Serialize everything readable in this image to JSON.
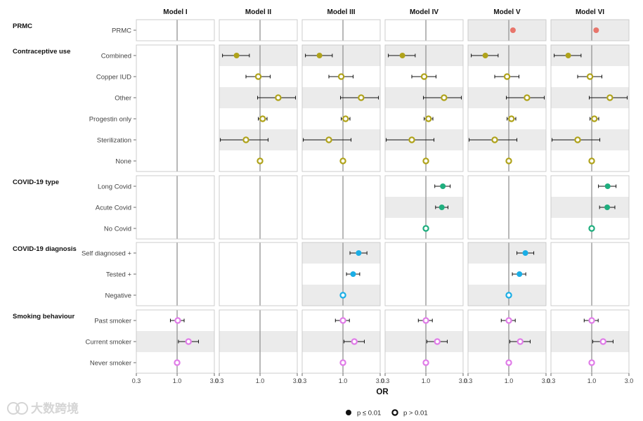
{
  "chart_data": {
    "type": "forest",
    "title": "",
    "xlabel": "OR",
    "xscale": "log",
    "xlim": [
      0.3,
      3.0
    ],
    "xticks": [
      0.3,
      1.0,
      3.0
    ],
    "xtick_labels": [
      "0.3",
      "1.0",
      "3.0"
    ],
    "reference_line": 1.0,
    "models": [
      "Model I",
      "Model II",
      "Model III",
      "Model IV",
      "Model V",
      "Model VI"
    ],
    "colors": {
      "PRMC": "#e8756b",
      "Contraceptive use": "#b0a31b",
      "COVID-19 type": "#1fae7e",
      "COVID-19 diagnosis": "#1aaee6",
      "Smoking behaviour": "#e07ce8"
    },
    "legend": {
      "items": [
        {
          "label": "p ≤ 0.01",
          "style": "filled"
        },
        {
          "label": "p > 0.01",
          "style": "hollow"
        }
      ]
    },
    "groups": [
      {
        "name": "PRMC",
        "rows": [
          "PRMC"
        ],
        "panels": [
          {
            "shaded": [],
            "points": []
          },
          {
            "shaded": [],
            "points": []
          },
          {
            "shaded": [],
            "points": []
          },
          {
            "shaded": [],
            "points": []
          },
          {
            "shaded": [
              "PRMC"
            ],
            "points": [
              {
                "row": "PRMC",
                "or": 1.13,
                "lo": 1.08,
                "hi": 1.19,
                "sig": true
              }
            ]
          },
          {
            "shaded": [
              "PRMC"
            ],
            "points": [
              {
                "row": "PRMC",
                "or": 1.14,
                "lo": 1.08,
                "hi": 1.2,
                "sig": true
              }
            ]
          }
        ]
      },
      {
        "name": "Contraceptive use",
        "rows": [
          "Combined",
          "Copper IUD",
          "Other",
          "Progestin only",
          "Sterilization",
          "None"
        ],
        "panels": [
          {
            "shaded": [],
            "points": []
          },
          {
            "shaded": [
              "Combined",
              "Other",
              "Sterilization"
            ],
            "points": [
              {
                "row": "Combined",
                "or": 0.5,
                "lo": 0.33,
                "hi": 0.73,
                "sig": true
              },
              {
                "row": "Copper IUD",
                "or": 0.95,
                "lo": 0.66,
                "hi": 1.35,
                "sig": false
              },
              {
                "row": "Other",
                "or": 1.71,
                "lo": 0.93,
                "hi": 2.85,
                "sig": false
              },
              {
                "row": "Progestin only",
                "or": 1.08,
                "lo": 0.95,
                "hi": 1.23,
                "sig": false
              },
              {
                "row": "Sterilization",
                "or": 0.66,
                "lo": 0.31,
                "hi": 1.27,
                "sig": false
              },
              {
                "row": "None",
                "or": 1.0,
                "sig": false
              }
            ]
          },
          {
            "shaded": [
              "Combined",
              "Other",
              "Sterilization"
            ],
            "points": [
              {
                "row": "Combined",
                "or": 0.5,
                "lo": 0.33,
                "hi": 0.73,
                "sig": true
              },
              {
                "row": "Copper IUD",
                "or": 0.95,
                "lo": 0.66,
                "hi": 1.35,
                "sig": false
              },
              {
                "row": "Other",
                "or": 1.71,
                "lo": 0.93,
                "hi": 2.85,
                "sig": false
              },
              {
                "row": "Progestin only",
                "or": 1.08,
                "lo": 0.95,
                "hi": 1.23,
                "sig": false
              },
              {
                "row": "Sterilization",
                "or": 0.66,
                "lo": 0.31,
                "hi": 1.27,
                "sig": false
              },
              {
                "row": "None",
                "or": 1.0,
                "sig": false
              }
            ]
          },
          {
            "shaded": [
              "Combined",
              "Other",
              "Sterilization"
            ],
            "points": [
              {
                "row": "Combined",
                "or": 0.5,
                "lo": 0.33,
                "hi": 0.73,
                "sig": true
              },
              {
                "row": "Copper IUD",
                "or": 0.95,
                "lo": 0.66,
                "hi": 1.35,
                "sig": false
              },
              {
                "row": "Other",
                "or": 1.71,
                "lo": 0.93,
                "hi": 2.85,
                "sig": false
              },
              {
                "row": "Progestin only",
                "or": 1.08,
                "lo": 0.95,
                "hi": 1.23,
                "sig": false
              },
              {
                "row": "Sterilization",
                "or": 0.66,
                "lo": 0.31,
                "hi": 1.27,
                "sig": false
              },
              {
                "row": "None",
                "or": 1.0,
                "sig": false
              }
            ]
          },
          {
            "shaded": [
              "Combined",
              "Other",
              "Sterilization"
            ],
            "points": [
              {
                "row": "Combined",
                "or": 0.5,
                "lo": 0.33,
                "hi": 0.73,
                "sig": true
              },
              {
                "row": "Copper IUD",
                "or": 0.95,
                "lo": 0.66,
                "hi": 1.35,
                "sig": false
              },
              {
                "row": "Other",
                "or": 1.71,
                "lo": 0.93,
                "hi": 2.85,
                "sig": false
              },
              {
                "row": "Progestin only",
                "or": 1.08,
                "lo": 0.95,
                "hi": 1.23,
                "sig": false
              },
              {
                "row": "Sterilization",
                "or": 0.66,
                "lo": 0.31,
                "hi": 1.27,
                "sig": false
              },
              {
                "row": "None",
                "or": 1.0,
                "sig": false
              }
            ]
          },
          {
            "shaded": [
              "Combined",
              "Other",
              "Sterilization"
            ],
            "points": [
              {
                "row": "Combined",
                "or": 0.5,
                "lo": 0.33,
                "hi": 0.73,
                "sig": true
              },
              {
                "row": "Copper IUD",
                "or": 0.95,
                "lo": 0.66,
                "hi": 1.35,
                "sig": false
              },
              {
                "row": "Other",
                "or": 1.71,
                "lo": 0.93,
                "hi": 2.85,
                "sig": false
              },
              {
                "row": "Progestin only",
                "or": 1.08,
                "lo": 0.95,
                "hi": 1.23,
                "sig": false
              },
              {
                "row": "Sterilization",
                "or": 0.66,
                "lo": 0.31,
                "hi": 1.27,
                "sig": false
              },
              {
                "row": "None",
                "or": 1.0,
                "sig": false
              }
            ]
          }
        ]
      },
      {
        "name": "COVID-19 type",
        "rows": [
          "Long Covid",
          "Acute Covid",
          "No Covid"
        ],
        "panels": [
          {
            "shaded": [],
            "points": []
          },
          {
            "shaded": [],
            "points": []
          },
          {
            "shaded": [],
            "points": []
          },
          {
            "shaded": [
              "Acute Covid"
            ],
            "points": [
              {
                "row": "Long Covid",
                "or": 1.65,
                "lo": 1.3,
                "hi": 2.05,
                "sig": true
              },
              {
                "row": "Acute Covid",
                "or": 1.6,
                "lo": 1.33,
                "hi": 1.92,
                "sig": true
              },
              {
                "row": "No Covid",
                "or": 1.0,
                "sig": false
              }
            ]
          },
          {
            "shaded": [],
            "points": []
          },
          {
            "shaded": [
              "Acute Covid"
            ],
            "points": [
              {
                "row": "Long Covid",
                "or": 1.6,
                "lo": 1.22,
                "hi": 2.05,
                "sig": true
              },
              {
                "row": "Acute Covid",
                "or": 1.58,
                "lo": 1.26,
                "hi": 1.98,
                "sig": true
              },
              {
                "row": "No Covid",
                "or": 1.0,
                "sig": false
              }
            ]
          }
        ]
      },
      {
        "name": "COVID-19 diagnosis",
        "rows": [
          "Self diagnosed +",
          "Tested  +",
          "Negative"
        ],
        "panels": [
          {
            "shaded": [],
            "points": []
          },
          {
            "shaded": [],
            "points": []
          },
          {
            "shaded": [
              "Self diagnosed +",
              "Negative"
            ],
            "points": [
              {
                "row": "Self diagnosed +",
                "or": 1.59,
                "lo": 1.23,
                "hi": 2.03,
                "sig": true
              },
              {
                "row": "Tested  +",
                "or": 1.35,
                "lo": 1.11,
                "hi": 1.64,
                "sig": true
              },
              {
                "row": "Negative",
                "or": 1.0,
                "sig": false
              }
            ]
          },
          {
            "shaded": [],
            "points": []
          },
          {
            "shaded": [
              "Self diagnosed +",
              "Negative"
            ],
            "points": [
              {
                "row": "Self diagnosed +",
                "or": 1.63,
                "lo": 1.27,
                "hi": 2.09,
                "sig": true
              },
              {
                "row": "Tested  +",
                "or": 1.37,
                "lo": 1.11,
                "hi": 1.65,
                "sig": true
              },
              {
                "row": "Negative",
                "or": 1.0,
                "sig": false
              }
            ]
          },
          {
            "shaded": [],
            "points": []
          }
        ]
      },
      {
        "name": "Smoking behaviour",
        "rows": [
          "Past smoker",
          "Current smoker",
          "Never smoker"
        ],
        "panels": [
          {
            "shaded": [
              "Current smoker"
            ],
            "points": [
              {
                "row": "Past smoker",
                "or": 1.02,
                "lo": 0.82,
                "hi": 1.23,
                "sig": false
              },
              {
                "row": "Current smoker",
                "or": 1.4,
                "lo": 1.04,
                "hi": 1.88,
                "sig": false
              },
              {
                "row": "Never smoker",
                "or": 1.0,
                "sig": false
              }
            ]
          },
          {
            "shaded": [
              "Current smoker"
            ],
            "points": []
          },
          {
            "shaded": [
              "Current smoker"
            ],
            "points": [
              {
                "row": "Past smoker",
                "or": 1.0,
                "lo": 0.8,
                "hi": 1.21,
                "sig": false
              },
              {
                "row": "Current smoker",
                "or": 1.4,
                "lo": 1.03,
                "hi": 1.88,
                "sig": false
              },
              {
                "row": "Never smoker",
                "or": 1.0,
                "sig": false
              }
            ]
          },
          {
            "shaded": [
              "Current smoker"
            ],
            "points": [
              {
                "row": "Past smoker",
                "or": 1.0,
                "lo": 0.8,
                "hi": 1.21,
                "sig": false
              },
              {
                "row": "Current smoker",
                "or": 1.4,
                "lo": 1.03,
                "hi": 1.88,
                "sig": false
              },
              {
                "row": "Never smoker",
                "or": 1.0,
                "sig": false
              }
            ]
          },
          {
            "shaded": [
              "Current smoker"
            ],
            "points": [
              {
                "row": "Past smoker",
                "or": 1.0,
                "lo": 0.8,
                "hi": 1.21,
                "sig": false
              },
              {
                "row": "Current smoker",
                "or": 1.4,
                "lo": 1.03,
                "hi": 1.88,
                "sig": false
              },
              {
                "row": "Never smoker",
                "or": 1.0,
                "sig": false
              }
            ]
          },
          {
            "shaded": [
              "Current smoker"
            ],
            "points": [
              {
                "row": "Past smoker",
                "or": 1.0,
                "lo": 0.8,
                "hi": 1.21,
                "sig": false
              },
              {
                "row": "Current smoker",
                "or": 1.4,
                "lo": 1.03,
                "hi": 1.88,
                "sig": false
              },
              {
                "row": "Never smoker",
                "or": 1.0,
                "sig": false
              }
            ]
          }
        ]
      }
    ]
  },
  "watermark": {
    "text": "大数跨境"
  }
}
